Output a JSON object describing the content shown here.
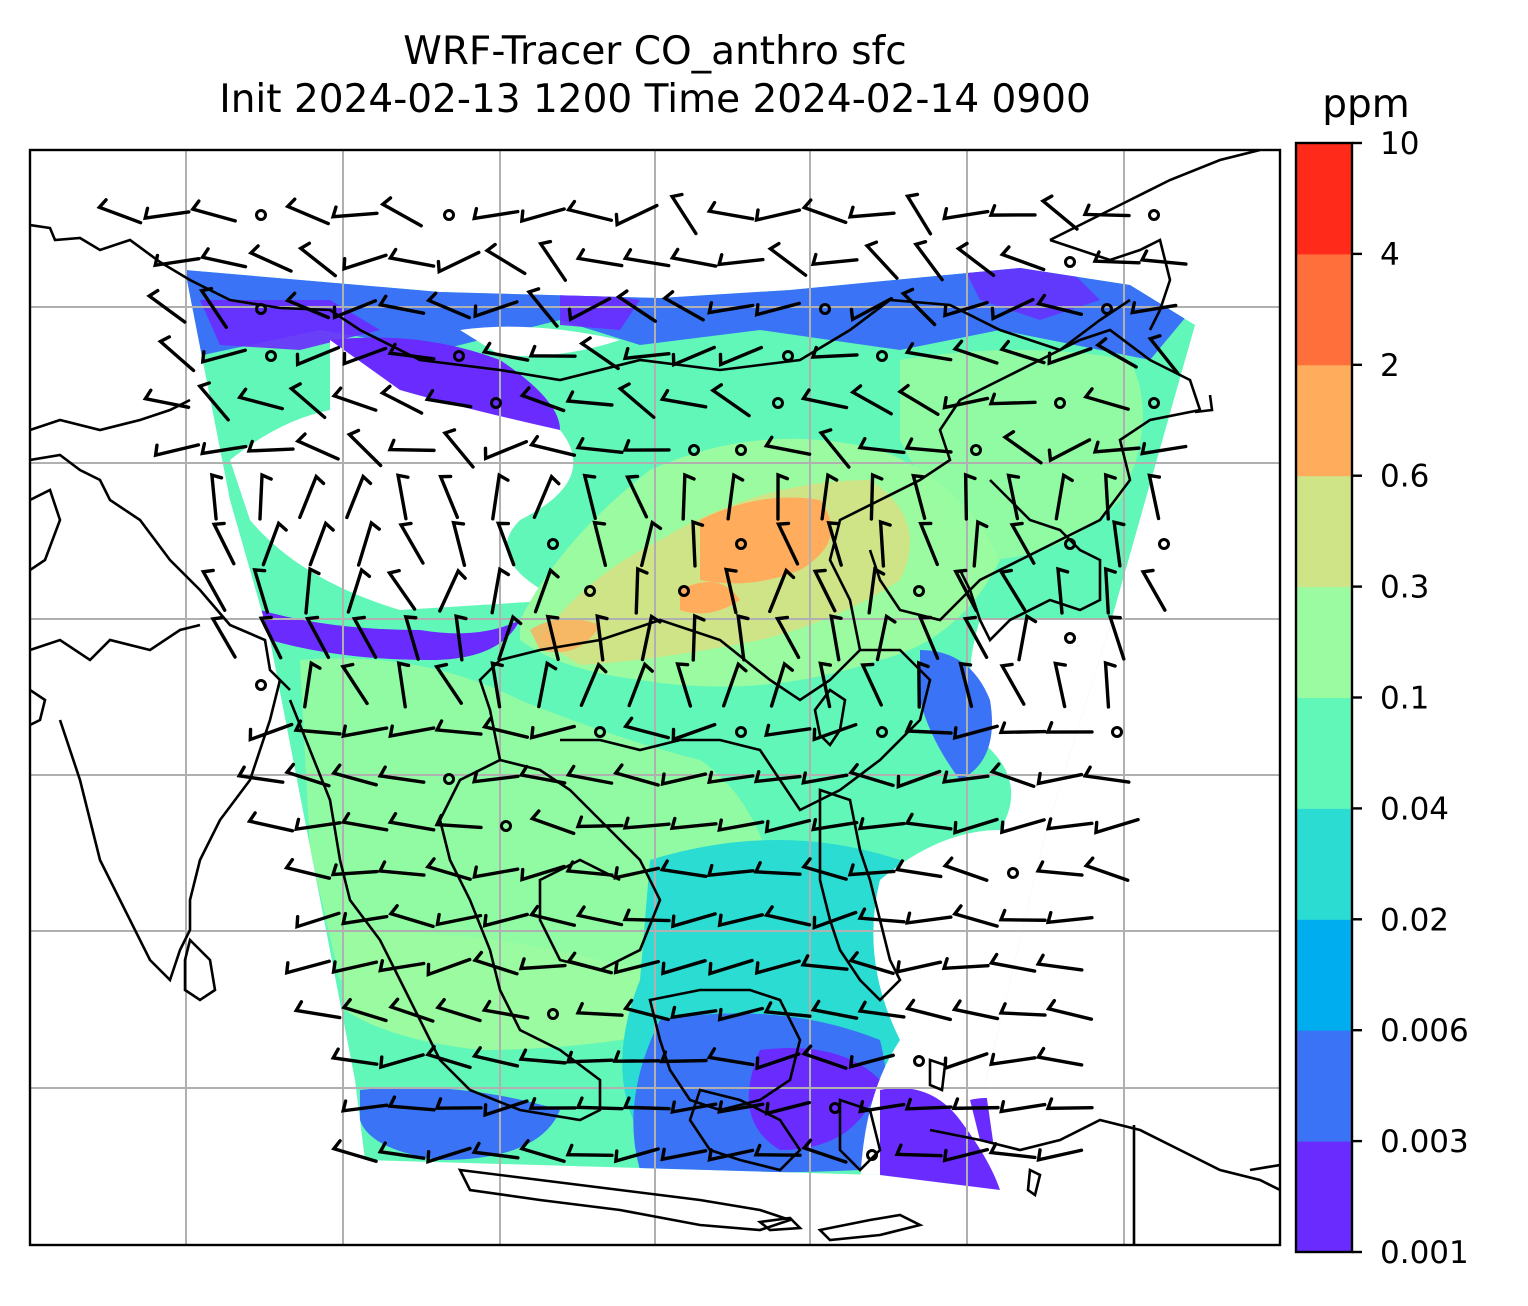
{
  "title_line1": "WRF-Tracer CO_anthro sfc",
  "title_line2": "Init 2024-02-13 1200 Time 2024-02-14 0900",
  "colorbar": {
    "unit": "ppm",
    "levels": [
      "0.001",
      "0.003",
      "0.006",
      "0.02",
      "0.04",
      "0.1",
      "0.3",
      "0.6",
      "2",
      "4",
      "10"
    ],
    "colors": [
      "#6a2bff",
      "#3a73f5",
      "#00aeef",
      "#2bdcd2",
      "#61f7b9",
      "#9afba0",
      "#cfe387",
      "#ffad5d",
      "#ff6f3c",
      "#ff2a1a"
    ]
  },
  "map": {
    "domain_edge_color": "#3a73f5",
    "gridline_color": "#b0b0b0",
    "coastline_color": "#000000"
  }
}
